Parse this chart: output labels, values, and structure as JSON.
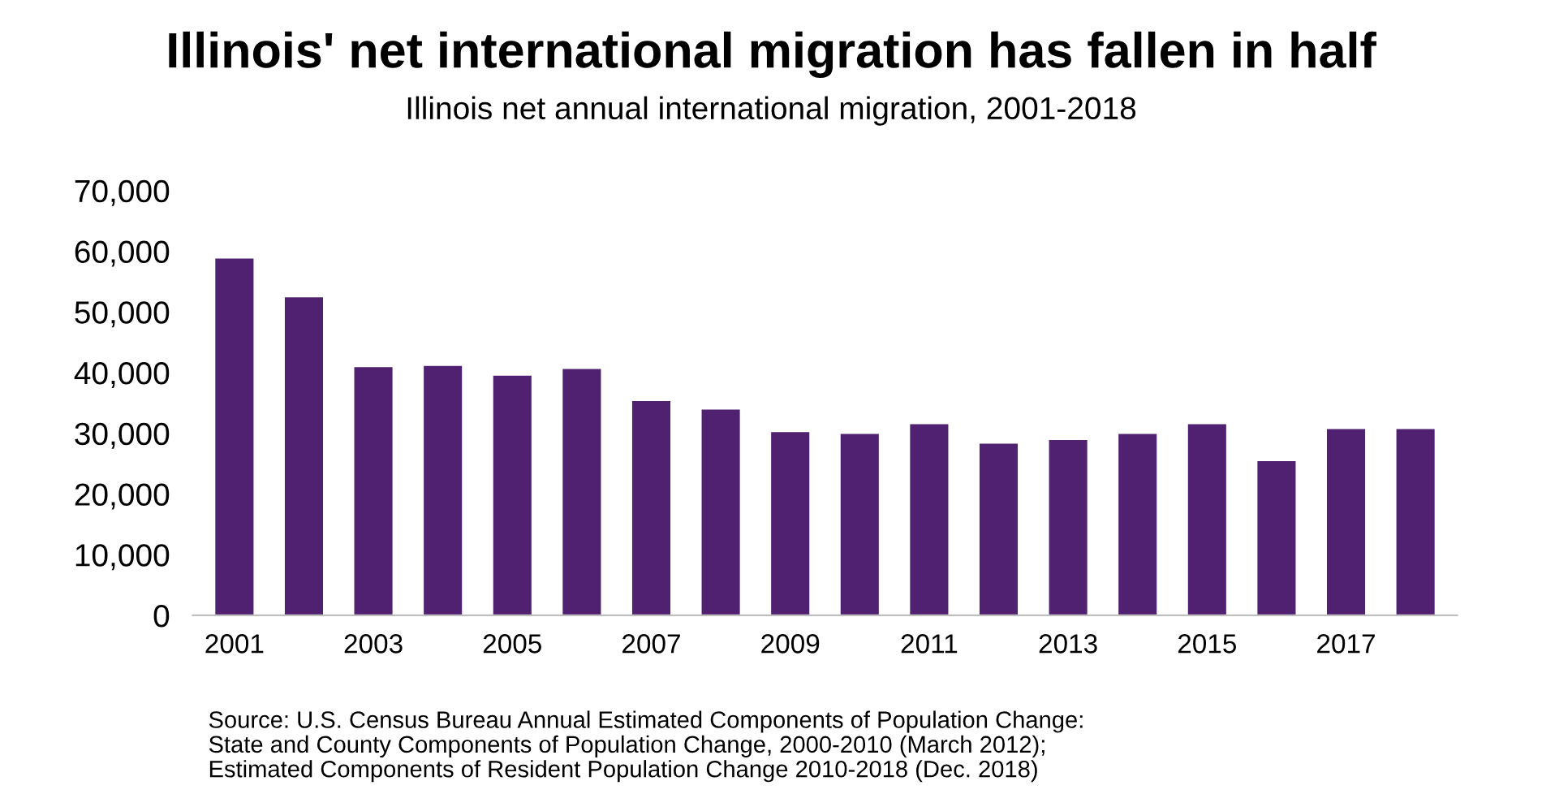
{
  "chart_data": {
    "type": "bar",
    "title": "Illinois' net international migration has fallen in half",
    "subtitle": "Illinois net annual international migration, 2001-2018",
    "categories": [
      "2001",
      null,
      "2003",
      null,
      "2005",
      null,
      "2007",
      null,
      "2009",
      null,
      "2011",
      null,
      "2013",
      null,
      "2015",
      null,
      "2017",
      null
    ],
    "values": [
      58800,
      52400,
      40900,
      41100,
      39500,
      40600,
      35300,
      33900,
      30200,
      29900,
      31500,
      28300,
      28900,
      29900,
      31500,
      25400,
      30700,
      30700
    ],
    "color": "#4f2170",
    "ylim": [
      0,
      70000
    ],
    "yticks": [
      {
        "value": 0,
        "label": "0"
      },
      {
        "value": 10000,
        "label": "10,000"
      },
      {
        "value": 20000,
        "label": "20,000"
      },
      {
        "value": 30000,
        "label": "30,000"
      },
      {
        "value": 40000,
        "label": "40,000"
      },
      {
        "value": 50000,
        "label": "50,000"
      },
      {
        "value": 60000,
        "label": "60,000"
      },
      {
        "value": 70000,
        "label": "70,000"
      }
    ],
    "grid": false,
    "annotations": [
      "Source: U.S. Census Bureau Annual Estimated Components of Population Change:\nState and County Components of Population Change, 2000-2010 (March 2012);\nEstimated Components of Resident Population Change 2010-2018 (Dec. 2018)"
    ]
  }
}
